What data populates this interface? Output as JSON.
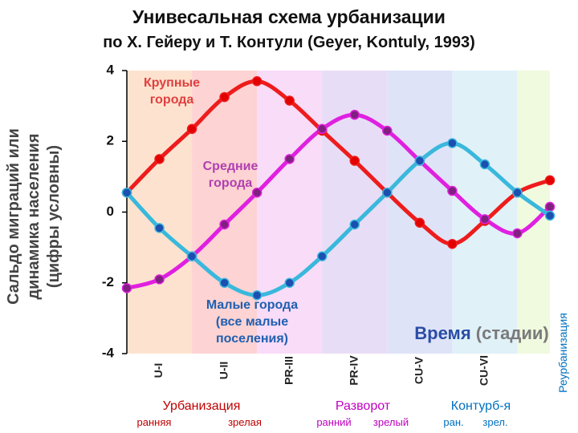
{
  "title": "Унивесальная схема урбанизации",
  "subtitle": "по Х. Гейеру и Т. Контули (Geyer, Kontuly, 1993)",
  "chart_data": {
    "type": "line",
    "ylabel": "Сальдо миграций или динамика населения (цифры условны)",
    "ylim": [
      -4,
      4
    ],
    "yticks": [
      4,
      2,
      0,
      -2,
      -4
    ],
    "x": [
      0,
      1,
      2,
      3,
      4,
      5,
      6,
      7,
      8,
      9,
      10,
      11,
      12,
      13
    ],
    "axis_note": "Время (стадии)",
    "series": [
      {
        "name": "Крупные города",
        "color": "#ee1c1c",
        "values": [
          0.55,
          1.5,
          2.35,
          3.25,
          3.7,
          3.15,
          2.3,
          1.45,
          0.55,
          -0.3,
          -0.9,
          -0.25,
          0.55,
          0.9
        ]
      },
      {
        "name": "Средние города",
        "color": "#e020e0",
        "values": [
          -2.15,
          -1.9,
          -1.25,
          -0.35,
          0.55,
          1.5,
          2.35,
          2.75,
          2.3,
          1.45,
          0.6,
          -0.2,
          -0.6,
          0.15
        ]
      },
      {
        "name": "Малые города (все малые поселения)",
        "color": "#39b8dc",
        "values": [
          0.55,
          -0.45,
          -1.25,
          -2.0,
          -2.35,
          -2.0,
          -1.25,
          -0.35,
          0.55,
          1.45,
          1.95,
          1.35,
          0.55,
          -0.1
        ]
      }
    ],
    "stages": [
      {
        "label": "U-I",
        "color": "#fde3cf"
      },
      {
        "label": "U-II",
        "color": "#fdd3d3"
      },
      {
        "label": "PR-III",
        "color": "#f8dcf8"
      },
      {
        "label": "PR-IV",
        "color": "#e8ddf6"
      },
      {
        "label": "CU-V",
        "color": "#dfe3f7"
      },
      {
        "label": "CU-VI",
        "color": "#e0f1f8"
      },
      {
        "label": "",
        "color": "#f0fadf"
      }
    ],
    "phases": [
      {
        "name": "Урбанизация",
        "sub": [
          "ранняя",
          "зрелая"
        ],
        "color": "#c00000"
      },
      {
        "name": "Разворот",
        "sub": [
          "ранний",
          "зрелый"
        ],
        "color": "#c000c0"
      },
      {
        "name": "Контурб-я",
        "sub": [
          "ран.",
          "зрел."
        ],
        "color": "#0070c0"
      }
    ],
    "side_label": "Реурбанизация",
    "side_label_color": "#0070c0"
  }
}
